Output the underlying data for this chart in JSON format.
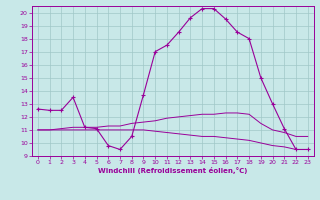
{
  "xlabel": "Windchill (Refroidissement éolien,°C)",
  "xlim": [
    -0.5,
    23.5
  ],
  "ylim": [
    9,
    20.5
  ],
  "yticks": [
    9,
    10,
    11,
    12,
    13,
    14,
    15,
    16,
    17,
    18,
    19,
    20
  ],
  "xticks": [
    0,
    1,
    2,
    3,
    4,
    5,
    6,
    7,
    8,
    9,
    10,
    11,
    12,
    13,
    14,
    15,
    16,
    17,
    18,
    19,
    20,
    21,
    22,
    23
  ],
  "bg_color": "#c8e8e8",
  "grid_color": "#a0c8c8",
  "line_color": "#990099",
  "line1_x": [
    0,
    1,
    2,
    3,
    4,
    5,
    6,
    7,
    8,
    9,
    10,
    11,
    12,
    13,
    14,
    15,
    16,
    17,
    18,
    19,
    20,
    21,
    22,
    23
  ],
  "line1_y": [
    12.6,
    12.5,
    12.5,
    13.5,
    11.2,
    11.1,
    9.8,
    9.5,
    10.5,
    13.7,
    17.0,
    17.5,
    18.5,
    19.6,
    20.3,
    20.3,
    19.5,
    18.5,
    18.0,
    15.0,
    13.0,
    11.1,
    9.5,
    9.5
  ],
  "line2_x": [
    0,
    1,
    2,
    3,
    4,
    5,
    6,
    7,
    8,
    9,
    10,
    11,
    12,
    13,
    14,
    15,
    16,
    17,
    18,
    19,
    20,
    21,
    22,
    23
  ],
  "line2_y": [
    11.0,
    11.0,
    11.1,
    11.2,
    11.2,
    11.2,
    11.3,
    11.3,
    11.5,
    11.6,
    11.7,
    11.9,
    12.0,
    12.1,
    12.2,
    12.2,
    12.3,
    12.3,
    12.2,
    11.5,
    11.0,
    10.8,
    10.5,
    10.5
  ],
  "line3_x": [
    0,
    1,
    2,
    3,
    4,
    5,
    6,
    7,
    8,
    9,
    10,
    11,
    12,
    13,
    14,
    15,
    16,
    17,
    18,
    19,
    20,
    21,
    22,
    23
  ],
  "line3_y": [
    11.0,
    11.0,
    11.0,
    11.0,
    11.0,
    11.0,
    11.0,
    11.0,
    11.0,
    11.0,
    10.9,
    10.8,
    10.7,
    10.6,
    10.5,
    10.5,
    10.4,
    10.3,
    10.2,
    10.0,
    9.8,
    9.7,
    9.5,
    9.5
  ]
}
